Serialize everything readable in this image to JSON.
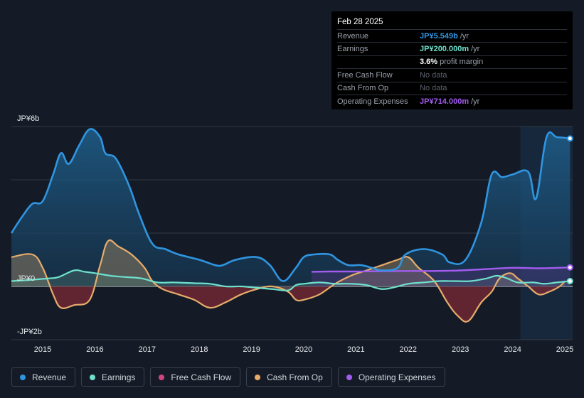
{
  "tooltip": {
    "date": "Feb 28 2025",
    "rows": [
      {
        "label": "Revenue",
        "value": "JP¥5.549b",
        "unit": "/yr",
        "color": "#2f95e0"
      },
      {
        "label": "Earnings",
        "value": "JP¥200.000m",
        "unit": "/yr",
        "color": "#6fe0cc"
      },
      {
        "label": "",
        "value": "3.6%",
        "unit": "profit margin",
        "color": "#ffffff"
      },
      {
        "label": "Free Cash Flow",
        "nodata": "No data"
      },
      {
        "label": "Cash From Op",
        "nodata": "No data"
      },
      {
        "label": "Operating Expenses",
        "value": "JP¥714.000m",
        "unit": "/yr",
        "color": "#a35cf0"
      }
    ]
  },
  "legend": [
    {
      "label": "Revenue",
      "color": "#2f95e0"
    },
    {
      "label": "Earnings",
      "color": "#6fe0cc"
    },
    {
      "label": "Free Cash Flow",
      "color": "#d0457e"
    },
    {
      "label": "Cash From Op",
      "color": "#e7ac6a"
    },
    {
      "label": "Operating Expenses",
      "color": "#a35cf0"
    }
  ],
  "chart_data": {
    "type": "area",
    "title": "",
    "xlabel": "",
    "ylabel": "",
    "y_tick_labels": [
      {
        "value": 6,
        "label": "JP¥6b"
      },
      {
        "value": 0,
        "label": "JP¥0"
      },
      {
        "value": -2,
        "label": "-JP¥2b"
      }
    ],
    "ylim": [
      -2,
      6
    ],
    "xlim": [
      2014.4,
      2025.15
    ],
    "x_ticks": [
      2015,
      2016,
      2017,
      2018,
      2019,
      2020,
      2021,
      2022,
      2023,
      2024,
      2025
    ],
    "highlight_start": 2024.15,
    "series": [
      {
        "name": "Revenue",
        "color": "#2f95e0",
        "x": [
          2014.4,
          2014.6,
          2014.8,
          2015.0,
          2015.2,
          2015.35,
          2015.5,
          2015.7,
          2015.9,
          2016.1,
          2016.2,
          2016.4,
          2016.65,
          2016.85,
          2017.1,
          2017.35,
          2017.6,
          2018.0,
          2018.3,
          2018.45,
          2018.7,
          2019.1,
          2019.35,
          2019.6,
          2019.85,
          2020.0,
          2020.2,
          2020.5,
          2020.65,
          2020.85,
          2021.1,
          2021.3,
          2021.5,
          2021.8,
          2021.95,
          2022.3,
          2022.65,
          2022.8,
          2023.1,
          2023.4,
          2023.6,
          2023.8,
          2024.0,
          2024.3,
          2024.45,
          2024.65,
          2024.85,
          2025.1
        ],
        "values": [
          2.0,
          2.6,
          3.1,
          3.2,
          4.2,
          5.0,
          4.6,
          5.3,
          5.9,
          5.6,
          5.0,
          4.8,
          3.8,
          2.7,
          1.6,
          1.4,
          1.2,
          1.0,
          0.8,
          0.8,
          1.0,
          1.1,
          0.8,
          0.2,
          0.7,
          1.1,
          1.2,
          1.2,
          1.0,
          0.8,
          0.8,
          0.7,
          0.6,
          0.7,
          1.2,
          1.4,
          1.2,
          0.9,
          1.0,
          2.4,
          4.2,
          4.1,
          4.2,
          4.3,
          3.3,
          5.6,
          5.6,
          5.55
        ]
      },
      {
        "name": "Earnings",
        "color": "#6fe0cc",
        "x": [
          2014.4,
          2014.8,
          2015.1,
          2015.3,
          2015.6,
          2015.8,
          2016.0,
          2016.3,
          2016.6,
          2016.9,
          2017.2,
          2017.5,
          2017.9,
          2018.2,
          2018.5,
          2018.8,
          2019.1,
          2019.4,
          2019.7,
          2019.85,
          2020.0,
          2020.3,
          2020.6,
          2020.9,
          2021.2,
          2021.5,
          2021.8,
          2022.0,
          2022.3,
          2022.6,
          2022.9,
          2023.2,
          2023.5,
          2023.7,
          2023.9,
          2024.1,
          2024.4,
          2024.6,
          2024.85,
          2025.1
        ],
        "values": [
          0.2,
          0.25,
          0.3,
          0.35,
          0.6,
          0.55,
          0.5,
          0.4,
          0.35,
          0.3,
          0.15,
          0.15,
          0.12,
          0.1,
          0.0,
          0.0,
          -0.05,
          -0.1,
          -0.15,
          0.05,
          0.1,
          0.15,
          0.1,
          0.1,
          0.05,
          -0.1,
          0.0,
          0.1,
          0.15,
          0.2,
          0.2,
          0.2,
          0.3,
          0.4,
          0.3,
          0.15,
          0.15,
          0.1,
          0.15,
          0.2
        ]
      },
      {
        "name": "Cash From Op",
        "color": "#e7ac6a",
        "x": [
          2014.4,
          2014.8,
          2015.0,
          2015.2,
          2015.35,
          2015.6,
          2015.9,
          2016.1,
          2016.25,
          2016.45,
          2016.7,
          2016.95,
          2017.1,
          2017.3,
          2017.6,
          2017.9,
          2018.2,
          2018.5,
          2018.8,
          2019.1,
          2019.4,
          2019.7,
          2019.85,
          2020.0,
          2020.3,
          2020.6,
          2020.9,
          2021.2,
          2021.5,
          2021.8,
          2022.0,
          2022.2,
          2022.5,
          2022.75,
          2022.95,
          2023.15,
          2023.4,
          2023.6,
          2023.75,
          2023.95,
          2024.1,
          2024.3,
          2024.5,
          2024.7,
          2024.9,
          2025.0
        ],
        "values": [
          1.1,
          1.2,
          0.7,
          -0.3,
          -0.8,
          -0.7,
          -0.5,
          0.8,
          1.7,
          1.5,
          1.2,
          0.7,
          0.2,
          -0.1,
          -0.3,
          -0.5,
          -0.8,
          -0.6,
          -0.3,
          -0.1,
          0.0,
          -0.2,
          -0.5,
          -0.5,
          -0.3,
          0.1,
          0.4,
          0.6,
          0.8,
          1.0,
          1.1,
          0.7,
          0.2,
          -0.6,
          -1.1,
          -1.3,
          -0.6,
          -0.2,
          0.3,
          0.5,
          0.3,
          0.0,
          -0.3,
          -0.2,
          0.0,
          0.2
        ]
      },
      {
        "name": "Operating Expenses",
        "color": "#a35cf0",
        "x": [
          2020.15,
          2020.5,
          2021.0,
          2021.5,
          2022.0,
          2022.5,
          2023.0,
          2023.5,
          2024.0,
          2024.5,
          2025.1
        ],
        "values": [
          0.55,
          0.56,
          0.56,
          0.57,
          0.58,
          0.58,
          0.6,
          0.65,
          0.7,
          0.68,
          0.714
        ]
      }
    ]
  }
}
